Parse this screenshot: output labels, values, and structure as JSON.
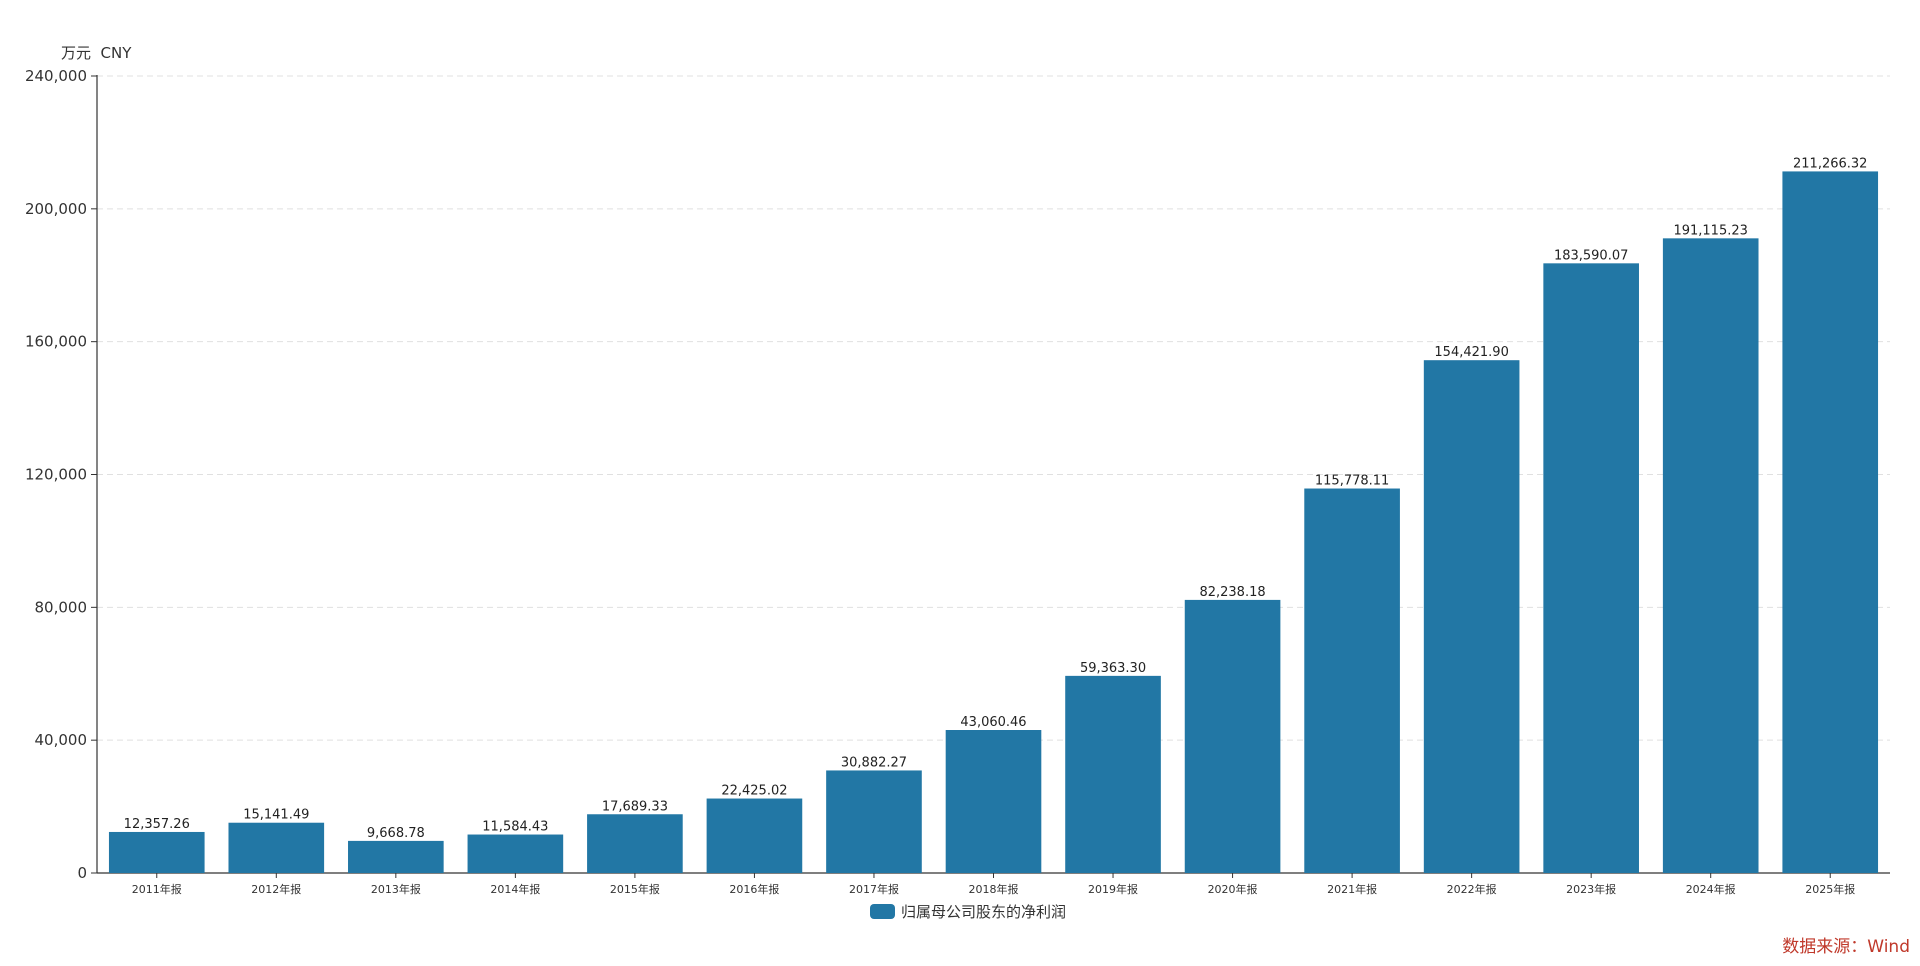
{
  "unit_label": "万元  CNY",
  "legend": {
    "label": "归属母公司股东的净利润"
  },
  "source": "数据来源：Wind",
  "colors": {
    "bar": "#2277a5",
    "axis": "#333333",
    "grid": "#e0e0e0",
    "source": "#c0392b"
  },
  "chart_data": {
    "type": "bar",
    "categories": [
      "2011年报",
      "2012年报",
      "2013年报",
      "2014年报",
      "2015年报",
      "2016年报",
      "2017年报",
      "2018年报",
      "2019年报",
      "2020年报",
      "2021年报",
      "2022年报",
      "2023年报",
      "2024年报",
      "2025年报"
    ],
    "series": [
      {
        "name": "归属母公司股东的净利润",
        "values": [
          12357.26,
          15141.49,
          9668.78,
          11584.43,
          17689.33,
          22425.02,
          30882.27,
          43060.46,
          59363.3,
          82238.18,
          115778.11,
          154421.9,
          183590.07,
          191115.23,
          211266.32
        ],
        "labels": [
          "12,357.26",
          "15,141.49",
          "9,668.78",
          "11,584.43",
          "17,689.33",
          "22,425.02",
          "30,882.27",
          "43,060.46",
          "59,363.30",
          "82,238.18",
          "115,778.11",
          "154,421.90",
          "183,590.07",
          "191,115.23",
          "211,266.32"
        ]
      }
    ],
    "y_ticks": [
      "0",
      "40,000",
      "80,000",
      "120,000",
      "160,000",
      "200,000",
      "240,000"
    ],
    "ylim": [
      0,
      240000
    ],
    "grid": true,
    "legend_position": "bottom-center"
  }
}
